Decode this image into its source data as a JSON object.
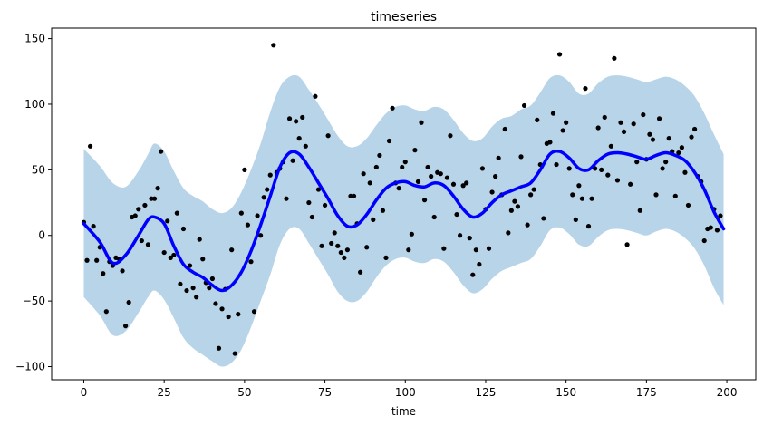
{
  "chart_data": {
    "type": "line",
    "title": "timeseries",
    "xlabel": "time",
    "ylabel": "",
    "xlim": [
      -10,
      209
    ],
    "ylim": [
      -110,
      158
    ],
    "grid": false,
    "xticks": [
      0,
      25,
      50,
      75,
      100,
      125,
      150,
      175,
      200
    ],
    "yticks": [
      -100,
      -50,
      0,
      50,
      100,
      150
    ],
    "colors": {
      "line": "#0000ff",
      "band": "#b8d4e8",
      "points": "#000000"
    },
    "series": [
      {
        "kind": "line",
        "x": [
          0,
          5,
          9,
          13,
          17,
          20,
          22,
          25,
          28,
          31,
          34,
          37,
          40,
          43,
          46,
          49,
          52,
          55,
          58,
          61,
          64,
          67,
          70,
          73,
          76,
          79,
          82,
          85,
          88,
          91,
          94,
          97,
          100,
          103,
          106,
          109,
          112,
          115,
          118,
          121,
          124,
          127,
          130,
          133,
          136,
          139,
          142,
          145,
          148,
          151,
          154,
          157,
          160,
          163,
          166,
          169,
          172,
          175,
          178,
          181,
          184,
          187,
          190,
          193,
          196,
          199
        ],
        "y": [
          9,
          -5,
          -21,
          -15,
          0,
          12,
          14,
          9,
          -8,
          -22,
          -28,
          -32,
          -38,
          -42,
          -38,
          -28,
          -12,
          8,
          30,
          52,
          63,
          62,
          52,
          40,
          28,
          15,
          7,
          8,
          16,
          27,
          36,
          40,
          41,
          38,
          37,
          40,
          38,
          30,
          20,
          14,
          17,
          25,
          31,
          34,
          37,
          40,
          50,
          62,
          64,
          59,
          51,
          50,
          57,
          62,
          63,
          62,
          60,
          58,
          61,
          63,
          61,
          57,
          48,
          35,
          18,
          5
        ]
      },
      {
        "kind": "band",
        "x": [
          0,
          5,
          9,
          13,
          17,
          20,
          22,
          25,
          28,
          31,
          34,
          37,
          40,
          43,
          46,
          49,
          52,
          55,
          58,
          61,
          64,
          67,
          70,
          73,
          76,
          79,
          82,
          85,
          88,
          91,
          94,
          97,
          100,
          103,
          106,
          109,
          112,
          115,
          118,
          121,
          124,
          127,
          130,
          133,
          136,
          139,
          142,
          145,
          148,
          151,
          154,
          157,
          160,
          163,
          166,
          169,
          172,
          175,
          178,
          181,
          184,
          187,
          190,
          193,
          196,
          199
        ],
        "upper": [
          66,
          53,
          40,
          37,
          49,
          62,
          70,
          64,
          49,
          36,
          30,
          26,
          20,
          17,
          21,
          33,
          50,
          70,
          94,
          113,
          121,
          121,
          111,
          100,
          88,
          76,
          68,
          68,
          74,
          84,
          93,
          98,
          99,
          96,
          95,
          98,
          96,
          88,
          78,
          72,
          74,
          83,
          89,
          91,
          96,
          99,
          109,
          120,
          122,
          117,
          108,
          108,
          116,
          121,
          122,
          121,
          119,
          117,
          119,
          121,
          119,
          114,
          106,
          93,
          77,
          62
        ],
        "lower": [
          -47,
          -61,
          -76,
          -73,
          -59,
          -47,
          -42,
          -49,
          -63,
          -78,
          -86,
          -91,
          -96,
          -100,
          -97,
          -87,
          -70,
          -50,
          -30,
          -7,
          5,
          5,
          -6,
          -18,
          -30,
          -43,
          -50,
          -50,
          -43,
          -32,
          -23,
          -18,
          -17,
          -20,
          -21,
          -18,
          -20,
          -28,
          -38,
          -44,
          -41,
          -33,
          -27,
          -24,
          -21,
          -18,
          -8,
          4,
          6,
          1,
          -7,
          -8,
          -1,
          4,
          5,
          4,
          2,
          0,
          3,
          5,
          3,
          -2,
          -10,
          -23,
          -40,
          -53
        ]
      }
    ],
    "points": [
      [
        0,
        10
      ],
      [
        1,
        -19
      ],
      [
        2,
        68
      ],
      [
        3,
        7
      ],
      [
        4,
        -19
      ],
      [
        5,
        -9
      ],
      [
        6,
        -29
      ],
      [
        7,
        -58
      ],
      [
        8,
        -20
      ],
      [
        9,
        -23
      ],
      [
        10,
        -17
      ],
      [
        11,
        -18
      ],
      [
        12,
        -27
      ],
      [
        13,
        -69
      ],
      [
        14,
        -51
      ],
      [
        15,
        14
      ],
      [
        16,
        15
      ],
      [
        17,
        20
      ],
      [
        18,
        -4
      ],
      [
        19,
        23
      ],
      [
        20,
        -7
      ],
      [
        21,
        28
      ],
      [
        22,
        28
      ],
      [
        23,
        36
      ],
      [
        24,
        64
      ],
      [
        25,
        -13
      ],
      [
        26,
        11
      ],
      [
        27,
        -17
      ],
      [
        28,
        -15
      ],
      [
        29,
        17
      ],
      [
        30,
        -37
      ],
      [
        31,
        5
      ],
      [
        32,
        -42
      ],
      [
        33,
        -23
      ],
      [
        34,
        -40
      ],
      [
        35,
        -47
      ],
      [
        36,
        -3
      ],
      [
        37,
        -18
      ],
      [
        38,
        -36
      ],
      [
        39,
        -40
      ],
      [
        40,
        -33
      ],
      [
        41,
        -52
      ],
      [
        42,
        -86
      ],
      [
        43,
        -56
      ],
      [
        44,
        -41
      ],
      [
        45,
        -62
      ],
      [
        46,
        -11
      ],
      [
        47,
        -90
      ],
      [
        48,
        -60
      ],
      [
        49,
        17
      ],
      [
        50,
        50
      ],
      [
        51,
        8
      ],
      [
        52,
        -20
      ],
      [
        53,
        -58
      ],
      [
        54,
        15
      ],
      [
        55,
        0
      ],
      [
        56,
        29
      ],
      [
        57,
        35
      ],
      [
        58,
        46
      ],
      [
        59,
        145
      ],
      [
        60,
        48
      ],
      [
        61,
        51
      ],
      [
        62,
        56
      ],
      [
        63,
        28
      ],
      [
        64,
        89
      ],
      [
        65,
        57
      ],
      [
        66,
        87
      ],
      [
        67,
        74
      ],
      [
        68,
        90
      ],
      [
        69,
        68
      ],
      [
        70,
        25
      ],
      [
        71,
        14
      ],
      [
        72,
        106
      ],
      [
        73,
        35
      ],
      [
        74,
        -8
      ],
      [
        75,
        23
      ],
      [
        76,
        76
      ],
      [
        77,
        -6
      ],
      [
        78,
        2
      ],
      [
        79,
        -8
      ],
      [
        80,
        -13
      ],
      [
        81,
        -17
      ],
      [
        82,
        -11
      ],
      [
        83,
        30
      ],
      [
        84,
        30
      ],
      [
        85,
        9
      ],
      [
        86,
        -28
      ],
      [
        87,
        47
      ],
      [
        88,
        -9
      ],
      [
        89,
        40
      ],
      [
        90,
        12
      ],
      [
        91,
        52
      ],
      [
        92,
        61
      ],
      [
        93,
        19
      ],
      [
        94,
        -17
      ],
      [
        95,
        72
      ],
      [
        96,
        97
      ],
      [
        97,
        40
      ],
      [
        98,
        36
      ],
      [
        99,
        52
      ],
      [
        100,
        56
      ],
      [
        101,
        -11
      ],
      [
        102,
        1
      ],
      [
        103,
        65
      ],
      [
        104,
        41
      ],
      [
        105,
        86
      ],
      [
        106,
        27
      ],
      [
        107,
        52
      ],
      [
        108,
        45
      ],
      [
        109,
        14
      ],
      [
        110,
        48
      ],
      [
        111,
        47
      ],
      [
        112,
        -10
      ],
      [
        113,
        44
      ],
      [
        114,
        76
      ],
      [
        115,
        39
      ],
      [
        116,
        16
      ],
      [
        117,
        0
      ],
      [
        118,
        38
      ],
      [
        119,
        40
      ],
      [
        120,
        -2
      ],
      [
        121,
        -30
      ],
      [
        122,
        -11
      ],
      [
        123,
        -22
      ],
      [
        124,
        51
      ],
      [
        125,
        20
      ],
      [
        126,
        -10
      ],
      [
        127,
        33
      ],
      [
        128,
        45
      ],
      [
        129,
        59
      ],
      [
        130,
        31
      ],
      [
        131,
        81
      ],
      [
        132,
        2
      ],
      [
        133,
        19
      ],
      [
        134,
        26
      ],
      [
        135,
        22
      ],
      [
        136,
        60
      ],
      [
        137,
        99
      ],
      [
        138,
        8
      ],
      [
        139,
        31
      ],
      [
        140,
        35
      ],
      [
        141,
        88
      ],
      [
        142,
        54
      ],
      [
        143,
        13
      ],
      [
        144,
        70
      ],
      [
        145,
        71
      ],
      [
        146,
        93
      ],
      [
        147,
        54
      ],
      [
        148,
        138
      ],
      [
        149,
        80
      ],
      [
        150,
        86
      ],
      [
        151,
        51
      ],
      [
        152,
        31
      ],
      [
        153,
        12
      ],
      [
        154,
        38
      ],
      [
        155,
        28
      ],
      [
        156,
        112
      ],
      [
        157,
        7
      ],
      [
        158,
        28
      ],
      [
        159,
        51
      ],
      [
        160,
        82
      ],
      [
        161,
        50
      ],
      [
        162,
        90
      ],
      [
        163,
        46
      ],
      [
        164,
        68
      ],
      [
        165,
        135
      ],
      [
        166,
        42
      ],
      [
        167,
        86
      ],
      [
        168,
        79
      ],
      [
        169,
        -7
      ],
      [
        170,
        39
      ],
      [
        171,
        85
      ],
      [
        172,
        56
      ],
      [
        173,
        19
      ],
      [
        174,
        92
      ],
      [
        175,
        58
      ],
      [
        176,
        77
      ],
      [
        177,
        73
      ],
      [
        178,
        31
      ],
      [
        179,
        89
      ],
      [
        180,
        51
      ],
      [
        181,
        56
      ],
      [
        182,
        74
      ],
      [
        183,
        64
      ],
      [
        184,
        30
      ],
      [
        185,
        63
      ],
      [
        186,
        67
      ],
      [
        187,
        48
      ],
      [
        188,
        23
      ],
      [
        189,
        75
      ],
      [
        190,
        81
      ],
      [
        191,
        45
      ],
      [
        192,
        41
      ],
      [
        193,
        -4
      ],
      [
        194,
        5
      ],
      [
        195,
        6
      ],
      [
        196,
        20
      ],
      [
        197,
        4
      ],
      [
        198,
        15
      ]
    ]
  }
}
